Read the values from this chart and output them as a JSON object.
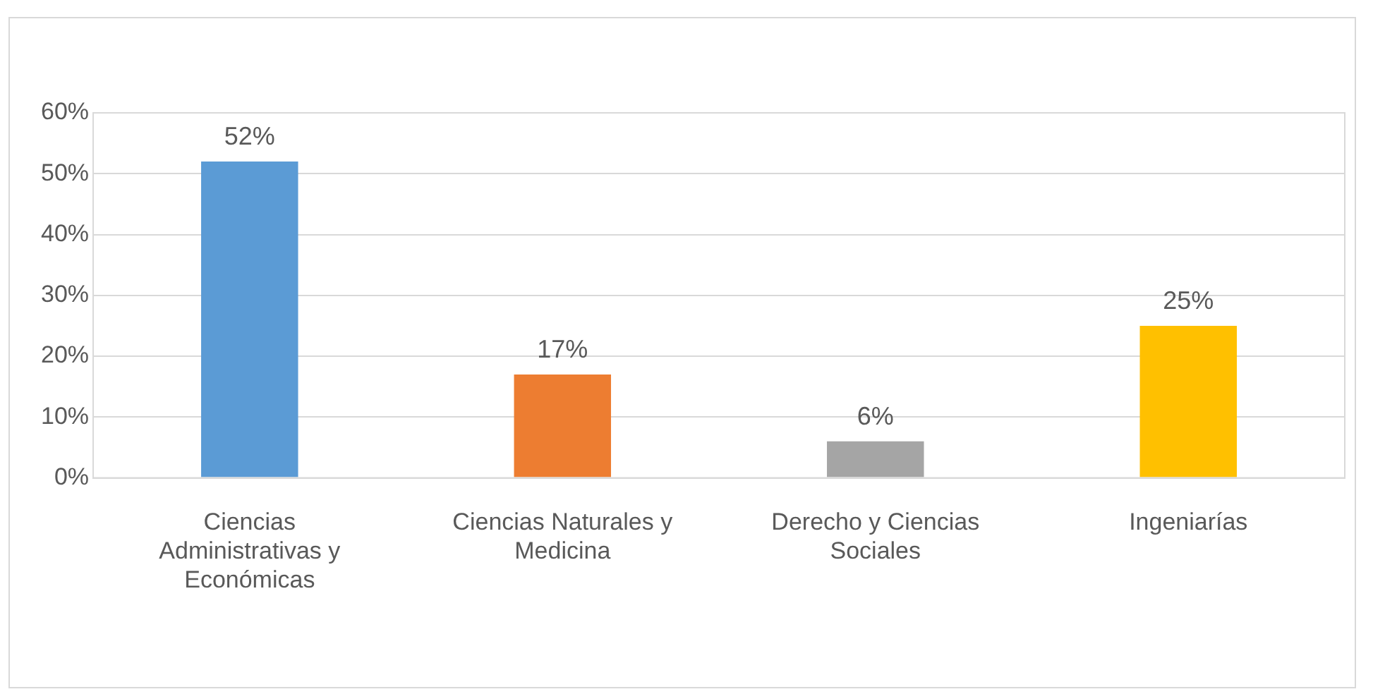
{
  "chart_data": {
    "type": "bar",
    "categories": [
      "Ciencias Administrativas y Económicas",
      "Ciencias Naturales y Medicina",
      "Derecho y Ciencias Sociales",
      "Ingeniarías"
    ],
    "values": [
      52,
      17,
      6,
      25
    ],
    "colors": [
      "#5b9bd5",
      "#ed7d31",
      "#a5a5a5",
      "#ffc000"
    ],
    "value_labels": [
      "52%",
      "17%",
      "6%",
      "25%"
    ],
    "ylim": [
      0,
      60
    ],
    "yticks": [
      {
        "value": 0,
        "label": "0%"
      },
      {
        "value": 10,
        "label": "10%"
      },
      {
        "value": 20,
        "label": "20%"
      },
      {
        "value": 30,
        "label": "30%"
      },
      {
        "value": 40,
        "label": "40%"
      },
      {
        "value": 50,
        "label": "50%"
      },
      {
        "value": 60,
        "label": "60%"
      }
    ],
    "grid": "y",
    "legend": false
  }
}
